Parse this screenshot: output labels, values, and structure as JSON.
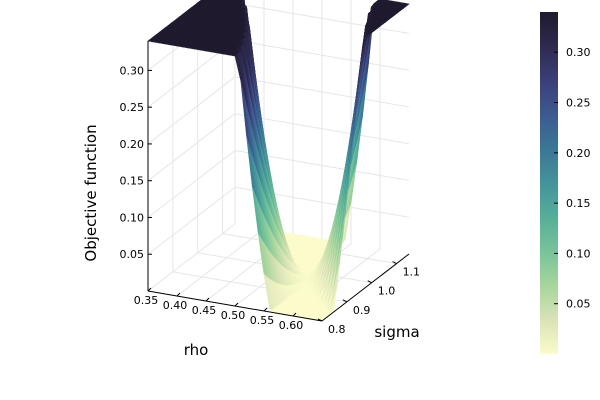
{
  "chart_data": {
    "type": "surface",
    "title": "",
    "xlabel": "rho",
    "ylabel": "sigma",
    "zlabel": "Objective function",
    "xlim": [
      0.35,
      0.65
    ],
    "ylim": [
      0.8,
      1.15
    ],
    "zlim": [
      0.0,
      0.34
    ],
    "x_ticks": [
      "0.35",
      "0.40",
      "0.45",
      "0.50",
      "0.55",
      "0.60"
    ],
    "y_ticks": [
      "0.8",
      "0.9",
      "1.0",
      "1.1"
    ],
    "z_ticks": [
      "0.05",
      "0.10",
      "0.15",
      "0.20",
      "0.25",
      "0.30"
    ],
    "colorbar_ticks": [
      "0.05",
      "0.10",
      "0.15",
      "0.20",
      "0.25",
      "0.30"
    ],
    "colorbar_range": [
      0.0,
      0.34
    ],
    "colormap": [
      "#fbfbcb",
      "#d9e3b5",
      "#a7d59c",
      "#78c39a",
      "#56ae99",
      "#44939a",
      "#3b7696",
      "#3c5a90",
      "#3b3f78",
      "#2e2a4f",
      "#1f1a2e"
    ],
    "surface_samples": [
      {
        "rho": 0.35,
        "sigma": 1.15,
        "value": 0.34
      },
      {
        "rho": 0.35,
        "sigma": 0.8,
        "value": 0.34
      },
      {
        "rho": 0.55,
        "sigma": 0.97,
        "value": 0.0
      },
      {
        "rho": 0.65,
        "sigma": 0.8,
        "value": 0.05
      },
      {
        "rho": 0.65,
        "sigma": 1.15,
        "value": 0.34
      }
    ],
    "grid": true,
    "legend": "colorbar-right"
  }
}
